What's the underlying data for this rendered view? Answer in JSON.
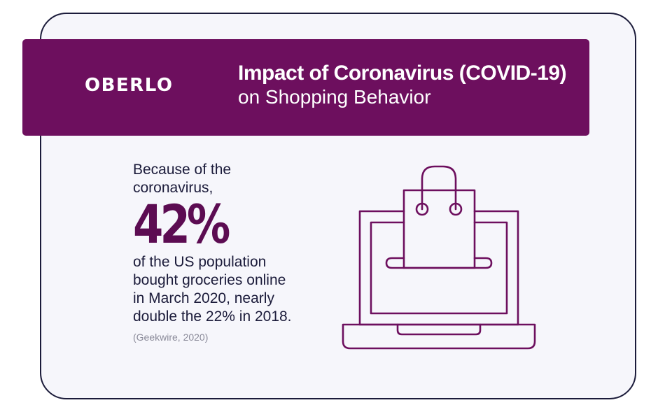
{
  "header": {
    "logo": "OBERLO",
    "title_line1": "Impact of Coronavirus (COVID-19)",
    "title_line2": "on Shopping Behavior"
  },
  "stat": {
    "intro": "Because of the\ncoronavirus,",
    "value": "42%",
    "description": "of the US population\nbought groceries online\nin March 2020, nearly\ndouble the 22% in 2018.",
    "source": "(Geekwire, 2020)"
  },
  "illustration": {
    "icon": "laptop-shopping-bag-icon",
    "stroke_color": "#6d0f5e"
  },
  "colors": {
    "brand": "#6d0f5e",
    "text": "#1b1b3a",
    "card_background": "#f6f6fb",
    "source_text": "#8a8a99"
  }
}
